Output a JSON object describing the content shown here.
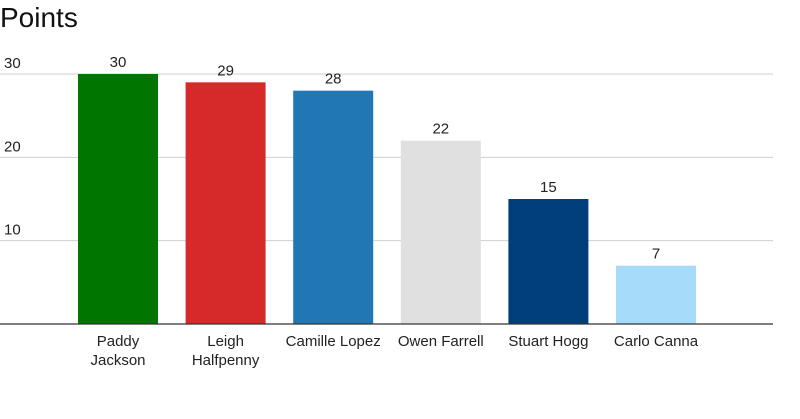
{
  "chart_data": {
    "type": "bar",
    "title": "Points",
    "xlabel": "",
    "ylabel": "",
    "categories": [
      [
        "Paddy",
        "Jackson"
      ],
      [
        "Leigh",
        "Halfpenny"
      ],
      [
        "Camille Lopez"
      ],
      [
        "Owen Farrell"
      ],
      [
        "Stuart Hogg"
      ],
      [
        "Carlo Canna"
      ]
    ],
    "values": [
      30,
      29,
      28,
      22,
      15,
      7
    ],
    "bar_colors": [
      "#007500",
      "#d62a2a",
      "#2077b4",
      "#e0e0e0",
      "#003f7a",
      "#a6dcfa"
    ],
    "yticks": [
      10,
      20,
      30
    ],
    "ylim": [
      0,
      30
    ],
    "grid": true,
    "legend": "none"
  }
}
